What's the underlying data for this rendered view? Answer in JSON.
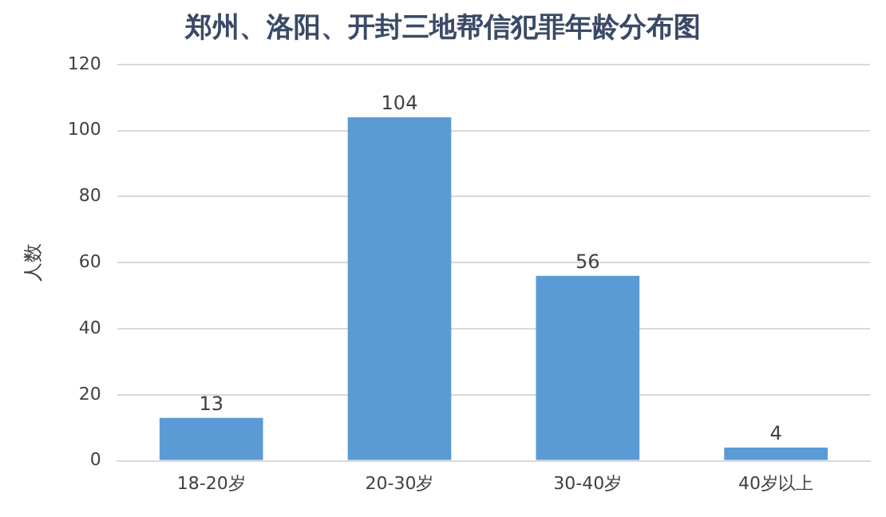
{
  "chart_data": {
    "type": "bar",
    "title": "郑州、洛阳、开封三地帮信犯罪年龄分布图",
    "ylabel": "人数",
    "categories": [
      "18-20岁",
      "20-30岁",
      "30-40岁",
      "40岁以上"
    ],
    "values": [
      13,
      104,
      56,
      4
    ],
    "color": "#5b9bd5",
    "ylim": [
      0,
      120
    ],
    "yticks": [
      0,
      20,
      40,
      60,
      80,
      100,
      120
    ],
    "grid": "y",
    "data_labels": true
  }
}
